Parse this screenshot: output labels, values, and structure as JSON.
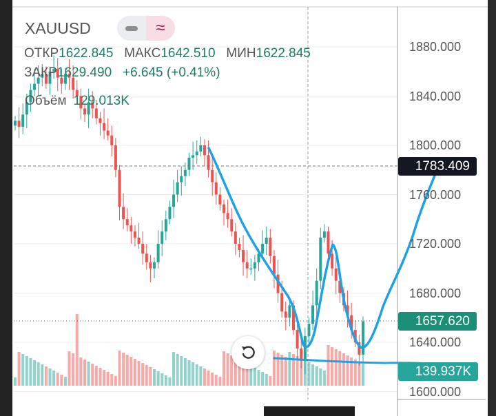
{
  "header": {
    "symbol": "XAUUSD",
    "mode_line_icon": "line-icon",
    "mode_wave_icon": "approx-icon"
  },
  "ohlc": {
    "open_label": "ОТКР",
    "open": "1622.845",
    "high_label": "МАКС",
    "high": "1642.510",
    "low_label": "МИН",
    "low": "1622.845",
    "close_label": "ЗАКР",
    "close": "1629.490",
    "change": "+6.645 (+0.41%)"
  },
  "volume": {
    "label": "Объём",
    "value": "129.013K"
  },
  "price_axis": [
    "1880.000",
    "1840.000",
    "1800.000",
    "1760.000",
    "1720.000",
    "1680.000",
    "1640.000",
    "1600.000"
  ],
  "badges": {
    "crosshair": "1783.409",
    "last_price": "1657.620",
    "last_volume": "139.937K"
  },
  "colors": {
    "up": "#26a69a",
    "down": "#ef5350",
    "drawing": "#1ea2e6",
    "last_badge": "#1b8f77",
    "crosshair_badge": "#131722"
  },
  "undo_icon": "undo-icon",
  "chart_data": {
    "type": "candlestick",
    "ylim": [
      1600,
      1900
    ],
    "closes": [
      1820,
      1815,
      1825,
      1835,
      1845,
      1850,
      1855,
      1858,
      1850,
      1860,
      1862,
      1855,
      1850,
      1858,
      1855,
      1845,
      1840,
      1830,
      1825,
      1835,
      1830,
      1822,
      1818,
      1812,
      1808,
      1800,
      1780,
      1750,
      1740,
      1735,
      1730,
      1725,
      1720,
      1712,
      1705,
      1700,
      1705,
      1720,
      1730,
      1740,
      1750,
      1760,
      1770,
      1775,
      1780,
      1790,
      1792,
      1795,
      1800,
      1792,
      1780,
      1770,
      1760,
      1752,
      1745,
      1740,
      1730,
      1720,
      1715,
      1705,
      1700,
      1700,
      1705,
      1712,
      1720,
      1725,
      1710,
      1695,
      1680,
      1665,
      1660,
      1670,
      1650,
      1635,
      1625,
      1645,
      1655,
      1670,
      1690,
      1725,
      1730,
      1712,
      1700,
      1690,
      1680,
      1670,
      1662,
      1650,
      1640,
      1630,
      1657
    ]
  }
}
